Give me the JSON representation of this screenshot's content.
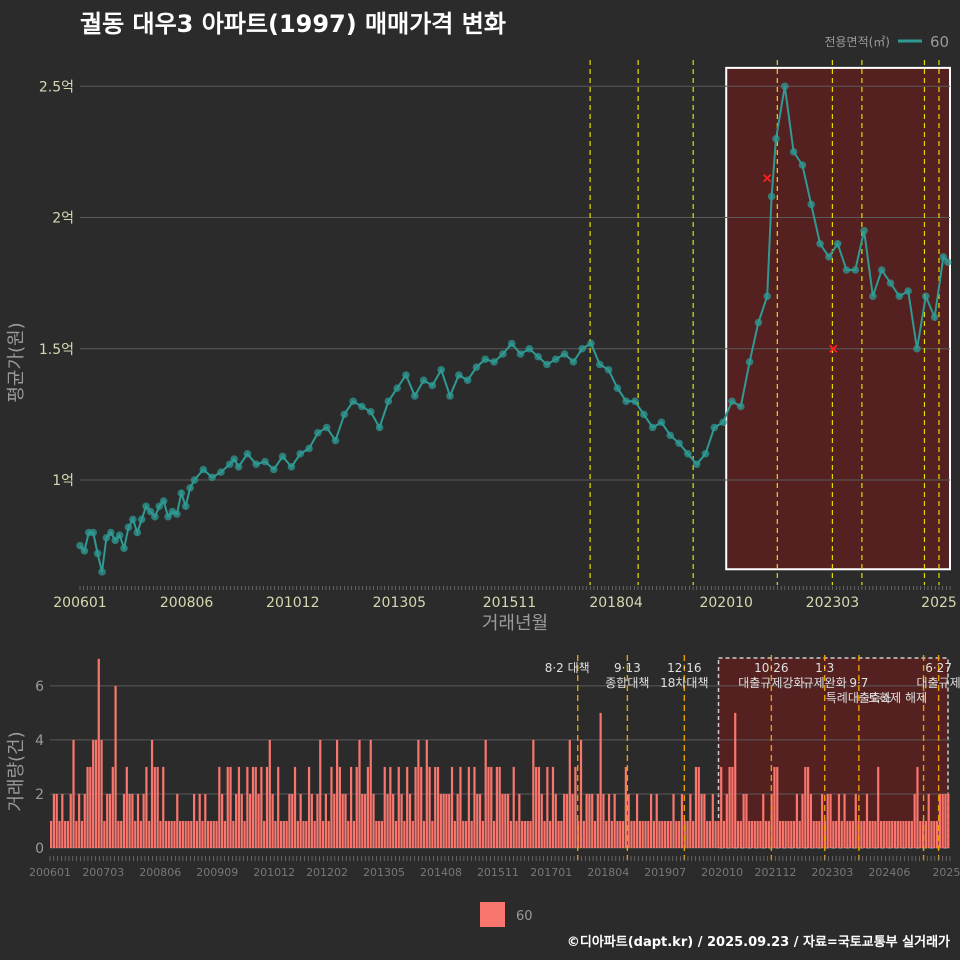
{
  "title": "궐동 대우3 아파트(1997) 매매가격 변화",
  "footer": "©디아파트(dapt.kr) / 2025.09.23 / 자료=국토교통부 실거래가",
  "colors": {
    "bg": "#2b2b2b",
    "line": "#2f9a94",
    "bar": "#f8766d",
    "vline": "#e0e000",
    "vline2": "#e8a000",
    "grid": "#5a5a5a",
    "ann": "#e0e0e0",
    "highlight": "#5c1f1f"
  },
  "chart_data": [
    {
      "type": "line",
      "xlabel": "거래년월",
      "ylabel": "평균가(원)",
      "ylim": [
        0.6,
        2.6
      ],
      "y_unit": "억",
      "yticks": [
        {
          "v": 1,
          "label": "1억"
        },
        {
          "v": 1.5,
          "label": "1.5억"
        },
        {
          "v": 2,
          "label": "2억"
        },
        {
          "v": 2.5,
          "label": "2.5억"
        }
      ],
      "xlim": [
        2006.0,
        2025.75
      ],
      "xticks": [
        {
          "t": 2006.0,
          "label": "200601"
        },
        {
          "t": 2008.42,
          "label": "200806"
        },
        {
          "t": 2010.83,
          "label": "201012"
        },
        {
          "t": 2013.25,
          "label": "201305"
        },
        {
          "t": 2015.75,
          "label": "201511"
        },
        {
          "t": 2018.17,
          "label": "201804"
        },
        {
          "t": 2020.67,
          "label": "202010"
        },
        {
          "t": 2023.08,
          "label": "202303"
        },
        {
          "t": 2025.5,
          "label": "2025"
        }
      ],
      "legend": {
        "title": "전용면적(㎡)",
        "label": "60",
        "position": "top-right"
      },
      "vlines": [
        2017.58,
        2018.67,
        2019.92,
        2021.83,
        2023.08,
        2023.75,
        2025.17,
        2025.5
      ],
      "highlight": {
        "x0": 2020.67,
        "x1": 2025.75,
        "y0": 0.66,
        "y1": 2.57
      },
      "markers_x": [
        {
          "t": 2021.6,
          "v": 2.15
        },
        {
          "t": 2023.1,
          "v": 1.5
        }
      ],
      "series": [
        {
          "name": "60",
          "points": [
            [
              2006.0,
              0.75
            ],
            [
              2006.1,
              0.73
            ],
            [
              2006.2,
              0.8
            ],
            [
              2006.3,
              0.8
            ],
            [
              2006.4,
              0.72
            ],
            [
              2006.5,
              0.65
            ],
            [
              2006.6,
              0.78
            ],
            [
              2006.7,
              0.8
            ],
            [
              2006.8,
              0.77
            ],
            [
              2006.9,
              0.79
            ],
            [
              2007.0,
              0.74
            ],
            [
              2007.1,
              0.82
            ],
            [
              2007.2,
              0.85
            ],
            [
              2007.3,
              0.8
            ],
            [
              2007.4,
              0.85
            ],
            [
              2007.5,
              0.9
            ],
            [
              2007.6,
              0.88
            ],
            [
              2007.7,
              0.86
            ],
            [
              2007.8,
              0.9
            ],
            [
              2007.9,
              0.92
            ],
            [
              2008.0,
              0.86
            ],
            [
              2008.1,
              0.88
            ],
            [
              2008.2,
              0.87
            ],
            [
              2008.3,
              0.95
            ],
            [
              2008.4,
              0.9
            ],
            [
              2008.5,
              0.97
            ],
            [
              2008.6,
              1.0
            ],
            [
              2008.8,
              1.04
            ],
            [
              2009.0,
              1.01
            ],
            [
              2009.2,
              1.03
            ],
            [
              2009.4,
              1.06
            ],
            [
              2009.5,
              1.08
            ],
            [
              2009.6,
              1.05
            ],
            [
              2009.8,
              1.1
            ],
            [
              2010.0,
              1.06
            ],
            [
              2010.2,
              1.07
            ],
            [
              2010.4,
              1.04
            ],
            [
              2010.6,
              1.09
            ],
            [
              2010.8,
              1.05
            ],
            [
              2011.0,
              1.1
            ],
            [
              2011.2,
              1.12
            ],
            [
              2011.4,
              1.18
            ],
            [
              2011.6,
              1.2
            ],
            [
              2011.8,
              1.15
            ],
            [
              2012.0,
              1.25
            ],
            [
              2012.2,
              1.3
            ],
            [
              2012.4,
              1.28
            ],
            [
              2012.6,
              1.26
            ],
            [
              2012.8,
              1.2
            ],
            [
              2013.0,
              1.3
            ],
            [
              2013.2,
              1.35
            ],
            [
              2013.4,
              1.4
            ],
            [
              2013.6,
              1.32
            ],
            [
              2013.8,
              1.38
            ],
            [
              2014.0,
              1.36
            ],
            [
              2014.2,
              1.42
            ],
            [
              2014.4,
              1.32
            ],
            [
              2014.6,
              1.4
            ],
            [
              2014.8,
              1.38
            ],
            [
              2015.0,
              1.43
            ],
            [
              2015.2,
              1.46
            ],
            [
              2015.4,
              1.45
            ],
            [
              2015.6,
              1.48
            ],
            [
              2015.8,
              1.52
            ],
            [
              2016.0,
              1.48
            ],
            [
              2016.2,
              1.5
            ],
            [
              2016.4,
              1.47
            ],
            [
              2016.6,
              1.44
            ],
            [
              2016.8,
              1.46
            ],
            [
              2017.0,
              1.48
            ],
            [
              2017.2,
              1.45
            ],
            [
              2017.4,
              1.5
            ],
            [
              2017.6,
              1.52
            ],
            [
              2017.8,
              1.44
            ],
            [
              2018.0,
              1.42
            ],
            [
              2018.2,
              1.35
            ],
            [
              2018.4,
              1.3
            ],
            [
              2018.6,
              1.3
            ],
            [
              2018.8,
              1.25
            ],
            [
              2019.0,
              1.2
            ],
            [
              2019.2,
              1.22
            ],
            [
              2019.4,
              1.17
            ],
            [
              2019.6,
              1.14
            ],
            [
              2019.8,
              1.1
            ],
            [
              2020.0,
              1.06
            ],
            [
              2020.2,
              1.1
            ],
            [
              2020.4,
              1.2
            ],
            [
              2020.6,
              1.22
            ],
            [
              2020.8,
              1.3
            ],
            [
              2021.0,
              1.28
            ],
            [
              2021.2,
              1.45
            ],
            [
              2021.4,
              1.6
            ],
            [
              2021.6,
              1.7
            ],
            [
              2021.7,
              2.08
            ],
            [
              2021.8,
              2.3
            ],
            [
              2022.0,
              2.5
            ],
            [
              2022.2,
              2.25
            ],
            [
              2022.4,
              2.2
            ],
            [
              2022.6,
              2.05
            ],
            [
              2022.8,
              1.9
            ],
            [
              2023.0,
              1.85
            ],
            [
              2023.2,
              1.9
            ],
            [
              2023.4,
              1.8
            ],
            [
              2023.6,
              1.8
            ],
            [
              2023.8,
              1.95
            ],
            [
              2024.0,
              1.7
            ],
            [
              2024.2,
              1.8
            ],
            [
              2024.4,
              1.75
            ],
            [
              2024.6,
              1.7
            ],
            [
              2024.8,
              1.72
            ],
            [
              2025.0,
              1.5
            ],
            [
              2025.2,
              1.7
            ],
            [
              2025.4,
              1.62
            ],
            [
              2025.6,
              1.85
            ],
            [
              2025.7,
              1.83
            ]
          ]
        }
      ]
    },
    {
      "type": "bar",
      "xlabel": "",
      "ylabel": "거래량(건)",
      "ylim": [
        0,
        7
      ],
      "yticks": [
        0,
        2,
        4,
        6
      ],
      "xlim": [
        2006.0,
        2025.75
      ],
      "xticks": [
        {
          "t": 2006.0,
          "label": "200601"
        },
        {
          "t": 2007.17,
          "label": "200703"
        },
        {
          "t": 2008.42,
          "label": "200806"
        },
        {
          "t": 2009.67,
          "label": "200909"
        },
        {
          "t": 2010.92,
          "label": "201012"
        },
        {
          "t": 2012.08,
          "label": "201202"
        },
        {
          "t": 2013.33,
          "label": "201305"
        },
        {
          "t": 2014.58,
          "label": "201408"
        },
        {
          "t": 2015.83,
          "label": "201511"
        },
        {
          "t": 2017.0,
          "label": "201701"
        },
        {
          "t": 2018.25,
          "label": "201804"
        },
        {
          "t": 2019.5,
          "label": "201907"
        },
        {
          "t": 2020.75,
          "label": "202010"
        },
        {
          "t": 2021.92,
          "label": "202112"
        },
        {
          "t": 2023.17,
          "label": "202303"
        },
        {
          "t": 2024.42,
          "label": "202406"
        },
        {
          "t": 2025.67,
          "label": "2025"
        }
      ],
      "legend": {
        "label": "60",
        "position": "bottom"
      },
      "vlines": [
        2017.58,
        2018.67,
        2019.92,
        2021.83,
        2023.0,
        2023.75,
        2025.17,
        2025.5
      ],
      "highlight": {
        "x0": 2020.67,
        "x1": 2025.75,
        "y0": 0,
        "y1": 7.2
      },
      "annotations": [
        {
          "t": 2017.58,
          "lines": [
            "8·2 대책"
          ],
          "align": "end"
        },
        {
          "t": 2018.67,
          "lines": [
            "9·13",
            "종합대책"
          ],
          "align": "middle"
        },
        {
          "t": 2019.92,
          "lines": [
            "12·16",
            "18차대책"
          ],
          "align": "middle"
        },
        {
          "t": 2021.83,
          "lines": [
            "10·26",
            "대출규제강화"
          ],
          "align": "middle"
        },
        {
          "t": 2023.0,
          "lines": [
            "1·3",
            "규제완화"
          ],
          "align": "middle"
        },
        {
          "t": 2023.75,
          "lines": [
            "",
            "9·7",
            "특례대출축소"
          ],
          "align": "middle"
        },
        {
          "t": 2024.6,
          "lines": [
            "",
            "",
            "토허제 해제"
          ],
          "align": "middle"
        },
        {
          "t": 2025.5,
          "lines": [
            "6·27",
            "대출규제"
          ],
          "align": "middle"
        }
      ],
      "values": [
        1,
        2,
        2,
        1,
        2,
        1,
        1,
        2,
        4,
        1,
        2,
        1,
        2,
        3,
        3,
        4,
        4,
        7,
        4,
        1,
        2,
        2,
        3,
        6,
        1,
        1,
        2,
        3,
        2,
        2,
        1,
        2,
        1,
        2,
        3,
        1,
        4,
        3,
        3,
        1,
        3,
        1,
        1,
        1,
        1,
        2,
        1,
        1,
        1,
        1,
        1,
        2,
        1,
        2,
        1,
        2,
        1,
        1,
        1,
        1,
        3,
        2,
        1,
        3,
        3,
        1,
        2,
        3,
        2,
        1,
        3,
        2,
        3,
        3,
        2,
        3,
        1,
        3,
        4,
        2,
        1,
        3,
        1,
        1,
        1,
        2,
        2,
        3,
        1,
        2,
        1,
        1,
        3,
        2,
        1,
        2,
        4,
        1,
        2,
        1,
        3,
        2,
        4,
        3,
        2,
        2,
        1,
        3,
        1,
        3,
        4,
        2,
        2,
        3,
        4,
        2,
        1,
        1,
        1,
        3,
        2,
        3,
        2,
        1,
        3,
        2,
        1,
        3,
        2,
        1,
        3,
        4,
        3,
        1,
        4,
        3,
        1,
        3,
        3,
        2,
        2,
        2,
        2,
        3,
        1,
        2,
        3,
        1,
        1,
        3,
        1,
        3,
        2,
        2,
        1,
        4,
        3,
        3,
        1,
        3,
        3,
        2,
        2,
        2,
        1,
        3,
        1,
        2,
        1,
        1,
        1,
        1,
        4,
        3,
        3,
        2,
        1,
        3,
        1,
        3,
        2,
        1,
        1,
        2,
        2,
        4,
        2,
        3,
        1,
        4,
        1,
        2,
        2,
        2,
        1,
        2,
        5,
        2,
        1,
        2,
        1,
        2,
        1,
        1,
        1,
        3,
        2,
        1,
        1,
        2,
        1,
        1,
        1,
        1,
        2,
        1,
        2,
        1,
        1,
        1,
        1,
        1,
        2,
        1,
        1,
        2,
        1,
        1,
        2,
        1,
        3,
        3,
        2,
        2,
        1,
        1,
        2,
        1,
        1,
        3,
        1,
        2,
        3,
        3,
        5,
        1,
        1,
        2,
        2,
        1,
        1,
        1,
        1,
        1,
        2,
        1,
        1,
        2,
        3,
        3,
        1,
        1,
        1,
        1,
        1,
        1,
        2,
        1,
        2,
        3,
        3,
        2,
        1,
        1,
        1,
        2,
        1,
        2,
        2,
        1,
        1,
        2,
        1,
        2,
        1,
        1,
        1,
        2,
        1,
        1,
        1,
        2,
        1,
        1,
        1,
        3,
        1,
        1,
        1,
        1,
        1,
        1,
        1,
        1,
        1,
        1,
        1,
        1,
        2,
        3,
        1,
        1,
        1,
        2,
        1,
        1,
        1,
        2,
        2,
        2,
        2
      ]
    }
  ]
}
